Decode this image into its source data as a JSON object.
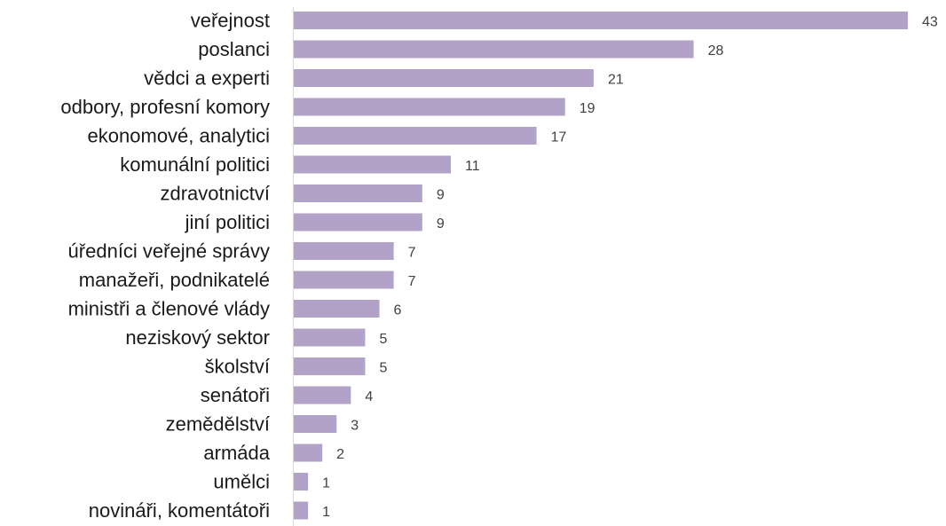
{
  "chart_data": {
    "type": "bar",
    "orientation": "horizontal",
    "categories": [
      "veřejnost",
      "poslanci",
      "vědci a experti",
      "odbory, profesní komory",
      "ekonomové, analytici",
      "komunální politici",
      "zdravotnictví",
      "jiní politici",
      "úředníci veřejné správy",
      "manažeři, podnikatelé",
      "ministři a členové vlády",
      "neziskový sektor",
      "školství",
      "senátoři",
      "zemědělství",
      "armáda",
      "umělci",
      "novináři, komentátoři"
    ],
    "values": [
      43,
      28,
      21,
      19,
      17,
      11,
      9,
      9,
      7,
      7,
      6,
      5,
      5,
      4,
      3,
      2,
      1,
      1
    ],
    "xlim": [
      0,
      43
    ],
    "grid": false,
    "legend": false,
    "colors": {
      "bar": "#b3a2c7",
      "category_text": "#1a1a1a",
      "value_text": "#404040",
      "axis": "#d9d9d9"
    }
  }
}
